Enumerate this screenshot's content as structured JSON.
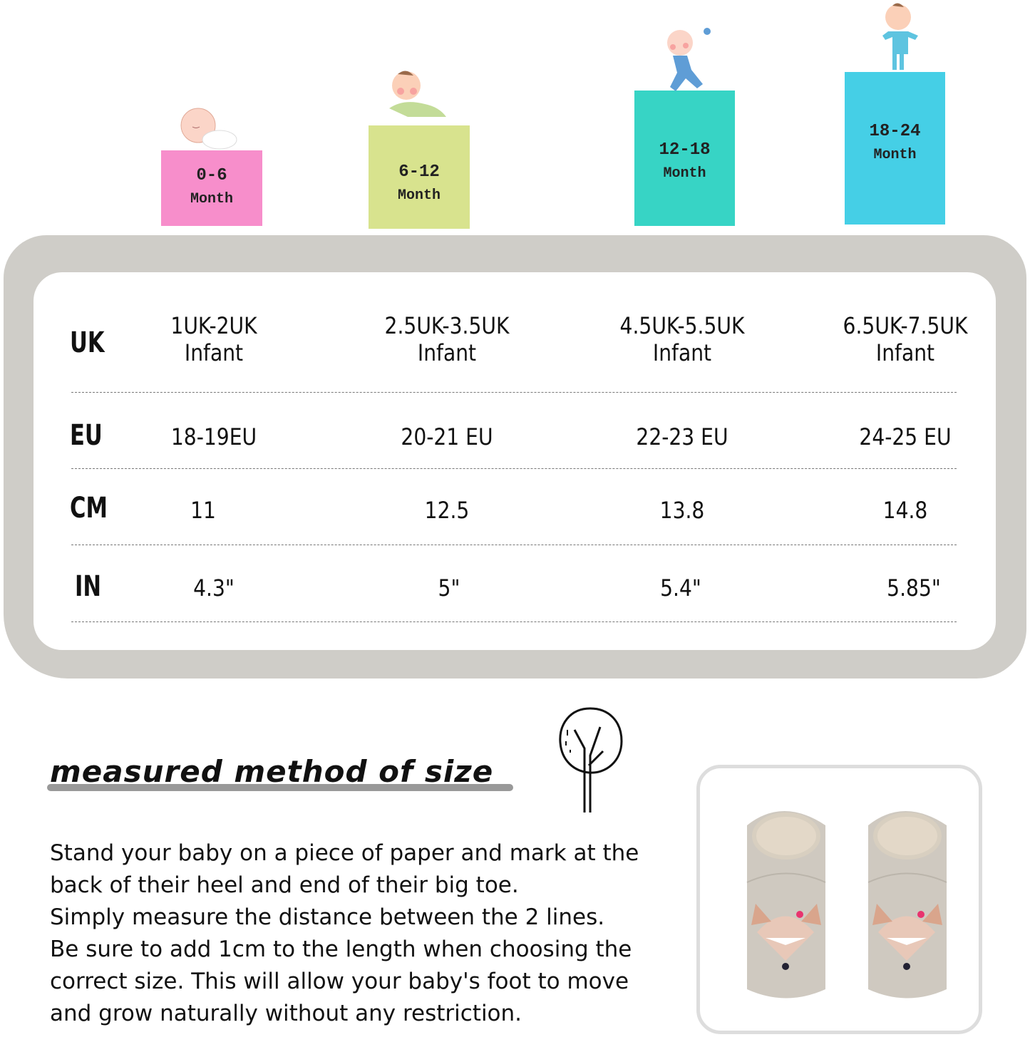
{
  "age_groups": [
    {
      "range": "0-6",
      "unit": "Month",
      "color": "#f78ecb"
    },
    {
      "range": "6-12",
      "unit": "Month",
      "color": "#d8e38e"
    },
    {
      "range": "12-18",
      "unit": "Month",
      "color": "#37d4c5"
    },
    {
      "range": "18-24",
      "unit": "Month",
      "color": "#45cfe6"
    }
  ],
  "size_table": {
    "rows": [
      {
        "label": "UK",
        "values": [
          [
            "1UK-2UK",
            "Infant"
          ],
          [
            "2.5UK-3.5UK",
            "Infant"
          ],
          [
            "4.5UK-5.5UK",
            "Infant"
          ],
          [
            "6.5UK-7.5UK",
            "Infant"
          ]
        ]
      },
      {
        "label": "EU",
        "values": [
          [
            "18-19EU"
          ],
          [
            "20-21 EU"
          ],
          [
            "22-23 EU"
          ],
          [
            "24-25 EU"
          ]
        ]
      },
      {
        "label": "CM",
        "values": [
          [
            "11"
          ],
          [
            "12.5"
          ],
          [
            "13.8"
          ],
          [
            "14.8"
          ]
        ]
      },
      {
        "label": "IN",
        "values": [
          [
            "4.3\""
          ],
          [
            "5\""
          ],
          [
            "5.4\""
          ],
          [
            "5.85\""
          ]
        ]
      }
    ]
  },
  "method": {
    "title": "measured method of size",
    "lines": [
      "Stand your baby on a piece of paper and mark at the",
      "back of their heel and  end of their big toe.",
      "Simply measure the distance between the 2 lines.",
      "Be sure to add 1cm to the length when choosing the",
      "correct size. This will allow your baby's foot to move",
      "and grow naturally without any restriction."
    ]
  },
  "icons": [
    "sleeping-baby",
    "crawling-baby",
    "running-baby",
    "standing-baby",
    "tree-icon",
    "baby-shoes-photo"
  ]
}
